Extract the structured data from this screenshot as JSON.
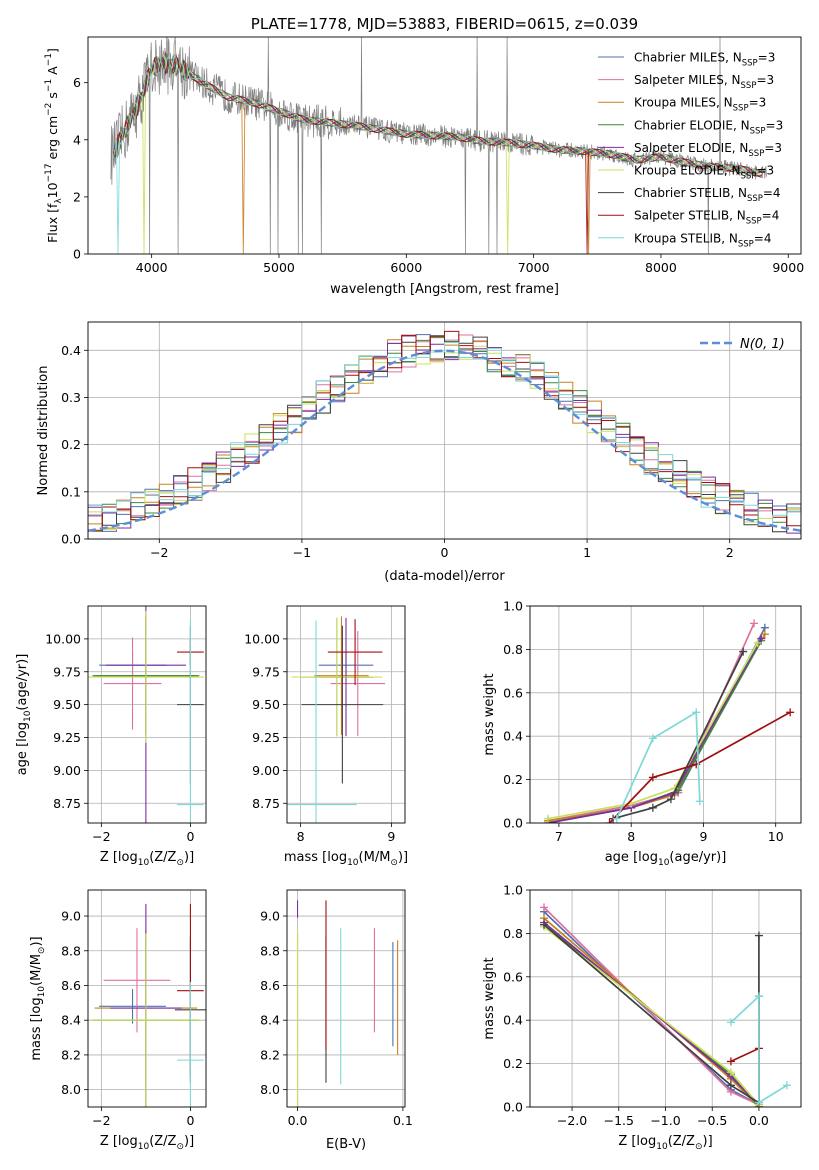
{
  "colors": {
    "chabrier_miles": "#4f72b0",
    "salpeter_miles": "#e0709f",
    "kroupa_miles": "#c8801f",
    "chabrier_elodie": "#3a8a3a",
    "salpeter_elodie": "#7b2fa0",
    "kroupa_elodie": "#c8e05a",
    "chabrier_stelib": "#404040",
    "salpeter_stelib": "#a01010",
    "kroupa_stelib": "#7dd8d8",
    "data_gray": "#7f7f7f",
    "normal_curve": "#5b8ed6"
  },
  "chart_data": [
    {
      "id": "spectrum",
      "type": "line",
      "title": "PLATE=1778, MJD=53883, FIBERID=0615, z=0.039",
      "xlabel": "wavelength [Angstrom, rest frame]",
      "ylabel_main": "Flux [f",
      "ylabel_sub": "λ",
      "ylabel_rest": "10",
      "ylabel_exp1": "−17",
      "ylabel_mid": " erg cm",
      "ylabel_exp2": "−2",
      "ylabel_s": " s",
      "ylabel_exp3": "−1",
      "ylabel_A": " A",
      "ylabel_exp4": "−1",
      "ylabel_end": "]",
      "xlim": [
        3500,
        9100
      ],
      "ylim": [
        0,
        7.6
      ],
      "xticks": [
        4000,
        5000,
        6000,
        7000,
        8000,
        9000
      ],
      "yticks": [
        0,
        2,
        4,
        6
      ],
      "grid": false,
      "legend_position": "top-right",
      "continuum": {
        "x": [
          3700,
          3800,
          3900,
          4000,
          4100,
          4200,
          4400,
          4600,
          4800,
          5000,
          5200,
          5400,
          5600,
          5800,
          6000,
          6200,
          6400,
          6600,
          6800,
          7000,
          7200,
          7400,
          7600,
          7800,
          8000,
          8200,
          8400,
          8600,
          8800
        ],
        "y": [
          3.5,
          4.4,
          5.3,
          6.5,
          6.7,
          6.6,
          6.0,
          5.5,
          5.3,
          5.0,
          4.7,
          4.6,
          4.5,
          4.35,
          4.2,
          4.15,
          4.1,
          3.95,
          3.9,
          3.8,
          3.65,
          3.6,
          3.5,
          3.3,
          3.4,
          3.2,
          3.05,
          3.0,
          2.8
        ]
      },
      "legend": [
        {
          "label": "Chabrier MILES, N",
          "sub": "SSP",
          "tail": "=3",
          "color_key": "chabrier_miles"
        },
        {
          "label": "Salpeter MILES, N",
          "sub": "SSP",
          "tail": "=3",
          "color_key": "salpeter_miles"
        },
        {
          "label": "Kroupa MILES, N",
          "sub": "SSP",
          "tail": "=3",
          "color_key": "kroupa_miles"
        },
        {
          "label": "Chabrier ELODIE, N",
          "sub": "SSP",
          "tail": "=3",
          "color_key": "chabrier_elodie"
        },
        {
          "label": "Salpeter ELODIE, N",
          "sub": "SSP",
          "tail": "=3",
          "color_key": "salpeter_elodie"
        },
        {
          "label": "Kroupa ELODIE, N",
          "sub": "SSP",
          "tail": "=3",
          "color_key": "kroupa_elodie"
        },
        {
          "label": "Chabrier STELIB, N",
          "sub": "SSP",
          "tail": "=4",
          "color_key": "chabrier_stelib"
        },
        {
          "label": "Salpeter STELIB, N",
          "sub": "SSP",
          "tail": "=4",
          "color_key": "salpeter_stelib"
        },
        {
          "label": "Kroupa STELIB, N",
          "sub": "SSP",
          "tail": "=4",
          "color_key": "kroupa_stelib"
        }
      ]
    },
    {
      "id": "residuals",
      "type": "line",
      "xlabel": "(data-model)/error",
      "ylabel": "Normed distribution",
      "xlim": [
        -2.5,
        2.5
      ],
      "ylim": [
        0,
        0.46
      ],
      "xticks": [
        -2,
        -1,
        0,
        1,
        2
      ],
      "yticks": [
        0.0,
        0.1,
        0.2,
        0.3,
        0.4
      ],
      "grid": true,
      "legend_label": "N(0, 1)",
      "legend_position": "top-right",
      "bin_width": 0.1
    },
    {
      "id": "age_vs_Z",
      "type": "scatter",
      "xlabel": "Z [log",
      "xlabel_sub": "10",
      "xlabel_end": "(Z/Z",
      "xlabel_sun": "⊙",
      "xlabel_close": ")]",
      "ylabel": "age  [log",
      "ylabel_sub": "10",
      "ylabel_end": "(age/yr)]",
      "xlim": [
        -2.3,
        0.35
      ],
      "ylim": [
        8.6,
        10.25
      ],
      "xticks": [
        -2,
        0
      ],
      "yticks": [
        8.75,
        9.0,
        9.25,
        9.5,
        9.75,
        10.0
      ],
      "grid": true,
      "points": [
        {
          "model": "chabrier_miles",
          "x": -1.3,
          "xerr": 0.75,
          "y": 9.8,
          "yerr": 0.1
        },
        {
          "model": "salpeter_miles",
          "x": -1.3,
          "xerr": 0.65,
          "y": 9.66,
          "yerr": 0.35
        },
        {
          "model": "kroupa_miles",
          "x": -1.0,
          "xerr": 1.15,
          "y": 9.72,
          "yerr": 0.45
        },
        {
          "model": "chabrier_elodie",
          "x": -1.0,
          "xerr": 1.2,
          "y": 9.72,
          "yerr": 0.45
        },
        {
          "model": "salpeter_elodie",
          "x": -1.0,
          "xerr": 0.9,
          "y": 9.8,
          "yerr": 1.2
        },
        {
          "model": "kroupa_elodie",
          "x": -1.0,
          "xerr": 1.3,
          "y": 9.71,
          "yerr": 0.5
        },
        {
          "model": "chabrier_stelib",
          "x": 0.0,
          "xerr": 0.3,
          "y": 9.5,
          "yerr": 0.6
        },
        {
          "model": "salpeter_stelib",
          "x": 0.0,
          "xerr": 0.3,
          "y": 9.9,
          "yerr": 0.1
        },
        {
          "model": "kroupa_stelib",
          "x": 0.0,
          "xerr": 0.3,
          "y": 8.74,
          "yerr": 1.4
        }
      ]
    },
    {
      "id": "age_vs_mass",
      "type": "scatter",
      "xlabel": "mass [log",
      "xlabel_sub": "10",
      "xlabel_end": "(M/M",
      "xlabel_sun": "⊙",
      "xlabel_close": ")]",
      "xlim": [
        7.85,
        9.15
      ],
      "ylim": [
        8.6,
        10.25
      ],
      "xticks": [
        8,
        9
      ],
      "yticks": [
        8.75,
        9.0,
        9.25,
        9.5,
        9.75,
        10.0
      ],
      "grid": true,
      "points": [
        {
          "model": "chabrier_miles",
          "x": 8.5,
          "xerr": 0.3,
          "y": 9.8,
          "yerr": 0.1
        },
        {
          "model": "salpeter_miles",
          "x": 8.63,
          "xerr": 0.3,
          "y": 9.66,
          "yerr": 0.4
        },
        {
          "model": "kroupa_miles",
          "x": 8.45,
          "xerr": 0.3,
          "y": 9.72,
          "yerr": 0.45
        },
        {
          "model": "chabrier_elodie",
          "x": 8.4,
          "xerr": 0.4,
          "y": 9.71,
          "yerr": 0.45
        },
        {
          "model": "salpeter_elodie",
          "x": 8.5,
          "xerr": 0.3,
          "y": 9.71,
          "yerr": 0.45
        },
        {
          "model": "kroupa_elodie",
          "x": 8.4,
          "xerr": 0.5,
          "y": 9.71,
          "yerr": 0.45
        },
        {
          "model": "chabrier_stelib",
          "x": 8.46,
          "xerr": 0.45,
          "y": 9.5,
          "yerr": 0.6
        },
        {
          "model": "salpeter_stelib",
          "x": 8.6,
          "xerr": 0.3,
          "y": 9.9,
          "yerr": 0.25
        },
        {
          "model": "kroupa_stelib",
          "x": 8.17,
          "xerr": 0.45,
          "y": 8.74,
          "yerr": 1.4
        }
      ]
    },
    {
      "id": "weight_vs_age",
      "type": "line",
      "xlabel": "age  [log",
      "xlabel_sub": "10",
      "xlabel_end": "(age/yr)]",
      "ylabel": "mass weight",
      "xlim": [
        6.6,
        10.35
      ],
      "ylim": [
        0,
        1.0
      ],
      "xticks": [
        7,
        8,
        9,
        10
      ],
      "yticks": [
        0.0,
        0.2,
        0.4,
        0.6,
        0.8,
        1.0
      ],
      "grid": true,
      "series": [
        {
          "model": "chabrier_miles",
          "x": [
            6.85,
            8.0,
            8.65,
            9.85
          ],
          "y": [
            0.01,
            0.08,
            0.14,
            0.9
          ]
        },
        {
          "model": "salpeter_miles",
          "x": [
            6.85,
            8.0,
            8.65,
            9.7
          ],
          "y": [
            0.01,
            0.08,
            0.14,
            0.92
          ]
        },
        {
          "model": "kroupa_miles",
          "x": [
            6.85,
            8.0,
            8.6,
            9.85
          ],
          "y": [
            0.01,
            0.07,
            0.13,
            0.87
          ]
        },
        {
          "model": "chabrier_elodie",
          "x": [
            6.85,
            8.0,
            8.65,
            9.8
          ],
          "y": [
            0.0,
            0.07,
            0.15,
            0.84
          ]
        },
        {
          "model": "salpeter_elodie",
          "x": [
            6.85,
            8.0,
            8.6,
            9.8
          ],
          "y": [
            0.0,
            0.07,
            0.14,
            0.85
          ]
        },
        {
          "model": "kroupa_elodie",
          "x": [
            6.85,
            8.0,
            8.6,
            9.75
          ],
          "y": [
            0.02,
            0.09,
            0.16,
            0.83
          ]
        },
        {
          "model": "chabrier_stelib",
          "x": [
            7.75,
            8.3,
            8.55,
            9.55
          ],
          "y": [
            0.02,
            0.07,
            0.11,
            0.79
          ]
        },
        {
          "model": "salpeter_stelib",
          "x": [
            7.7,
            8.3,
            8.9,
            10.2
          ],
          "y": [
            0.0,
            0.21,
            0.27,
            0.51
          ]
        },
        {
          "model": "kroupa_stelib",
          "x": [
            7.8,
            8.3,
            8.9,
            8.95
          ],
          "y": [
            0.02,
            0.39,
            0.51,
            0.1
          ]
        }
      ]
    },
    {
      "id": "mass_vs_Z",
      "type": "scatter",
      "xlabel": "Z [log",
      "xlabel_sub": "10",
      "xlabel_end": "(Z/Z",
      "xlabel_sun": "⊙",
      "xlabel_close": ")]",
      "ylabel": "mass [log",
      "ylabel_sub": "10",
      "ylabel_end": "(M/M",
      "ylabel_sun": "⊙",
      "ylabel_close": ")]",
      "xlim": [
        -2.3,
        0.35
      ],
      "ylim": [
        7.9,
        9.15
      ],
      "xticks": [
        -2,
        0
      ],
      "yticks": [
        8.0,
        8.2,
        8.4,
        8.6,
        8.8,
        9.0
      ],
      "grid": true,
      "points": [
        {
          "model": "chabrier_miles",
          "x": -1.3,
          "xerr": 0.75,
          "y": 8.48,
          "yerr": 0.1
        },
        {
          "model": "salpeter_miles",
          "x": -1.2,
          "xerr": 0.75,
          "y": 8.63,
          "yerr": 0.3
        },
        {
          "model": "kroupa_miles",
          "x": -1.0,
          "xerr": 1.15,
          "y": 8.47,
          "yerr": 0.45
        },
        {
          "model": "chabrier_elodie",
          "x": -1.0,
          "xerr": 1.2,
          "y": 8.4,
          "yerr": 0.5
        },
        {
          "model": "salpeter_elodie",
          "x": -1.0,
          "xerr": 0.8,
          "y": 8.47,
          "yerr": 0.6
        },
        {
          "model": "kroupa_elodie",
          "x": -1.0,
          "xerr": 1.25,
          "y": 8.4,
          "yerr": 0.5
        },
        {
          "model": "chabrier_stelib",
          "x": 0.0,
          "xerr": 0.35,
          "y": 8.46,
          "yerr": 0.42
        },
        {
          "model": "salpeter_stelib",
          "x": 0.0,
          "xerr": 0.3,
          "y": 8.57,
          "yerr": 0.5
        },
        {
          "model": "kroupa_stelib",
          "x": 0.0,
          "xerr": 0.3,
          "y": 8.17,
          "yerr": 0.45
        }
      ]
    },
    {
      "id": "mass_vs_ebv",
      "type": "scatter",
      "xlabel": "E(B-V)",
      "xlim": [
        -0.01,
        0.102
      ],
      "ylim": [
        7.9,
        9.15
      ],
      "xticks": [
        0.0,
        0.1
      ],
      "yticks": [
        8.0,
        8.2,
        8.4,
        8.6,
        8.8,
        9.0
      ],
      "grid": true,
      "points": [
        {
          "model": "chabrier_miles",
          "x": 0.0905,
          "y": 8.55,
          "yerr": 0.3
        },
        {
          "model": "salpeter_miles",
          "x": 0.073,
          "y": 8.63,
          "yerr": 0.3
        },
        {
          "model": "kroupa_miles",
          "x": 0.095,
          "y": 8.53,
          "yerr": 0.33
        },
        {
          "model": "chabrier_elodie",
          "x": 0.0,
          "y": 8.4,
          "yerr": 0.5
        },
        {
          "model": "salpeter_elodie",
          "x": 0.0,
          "y": 9.04,
          "yerr": 0.05
        },
        {
          "model": "kroupa_elodie",
          "x": 0.0,
          "y": 8.4,
          "yerr": 0.52
        },
        {
          "model": "chabrier_stelib",
          "x": 0.027,
          "y": 8.46,
          "yerr": 0.42
        },
        {
          "model": "salpeter_stelib",
          "x": 0.027,
          "y": 8.66,
          "yerr": 0.43
        },
        {
          "model": "kroupa_stelib",
          "x": 0.041,
          "y": 8.48,
          "yerr": 0.45
        }
      ]
    },
    {
      "id": "weight_vs_Z",
      "type": "line",
      "xlabel": "Z [log",
      "xlabel_sub": "10",
      "xlabel_end": "(Z/Z",
      "xlabel_sun": "⊙",
      "xlabel_close": ")]",
      "ylabel": "mass weight",
      "xlim": [
        -2.45,
        0.45
      ],
      "ylim": [
        0,
        1.0
      ],
      "xticks": [
        -2.0,
        -1.5,
        -1.0,
        -0.5,
        0.0
      ],
      "yticks": [
        0.0,
        0.2,
        0.4,
        0.6,
        0.8,
        1.0
      ],
      "grid": true,
      "series": [
        {
          "model": "chabrier_miles",
          "x": [
            -2.3,
            -0.3,
            0.0
          ],
          "y": [
            0.9,
            0.08,
            0.01
          ]
        },
        {
          "model": "salpeter_miles",
          "x": [
            -2.3,
            -0.3,
            0.0
          ],
          "y": [
            0.92,
            0.07,
            0.01
          ]
        },
        {
          "model": "kroupa_miles",
          "x": [
            -2.3,
            -0.3,
            0.0
          ],
          "y": [
            0.87,
            0.13,
            0.0
          ]
        },
        {
          "model": "chabrier_elodie",
          "x": [
            -2.3,
            -0.3,
            0.0
          ],
          "y": [
            0.84,
            0.15,
            0.0
          ]
        },
        {
          "model": "salpeter_elodie",
          "x": [
            -2.3,
            -0.3,
            0.0
          ],
          "y": [
            0.85,
            0.14,
            0.01
          ]
        },
        {
          "model": "kroupa_elodie",
          "x": [
            -2.3,
            -0.3,
            0.0
          ],
          "y": [
            0.83,
            0.16,
            0.01
          ]
        },
        {
          "model": "chabrier_stelib",
          "x": [
            -2.3,
            -0.3,
            0.0,
            0.0
          ],
          "y": [
            0.84,
            0.1,
            0.02,
            0.79
          ]
        },
        {
          "model": "salpeter_stelib",
          "x": [
            -0.3,
            0.0,
            0.0,
            0.0
          ],
          "y": [
            0.21,
            0.27,
            0.0,
            0.51
          ]
        },
        {
          "model": "kroupa_stelib",
          "x": [
            -0.3,
            0.0,
            0.0,
            0.3
          ],
          "y": [
            0.39,
            0.51,
            0.02,
            0.1
          ]
        }
      ]
    }
  ]
}
